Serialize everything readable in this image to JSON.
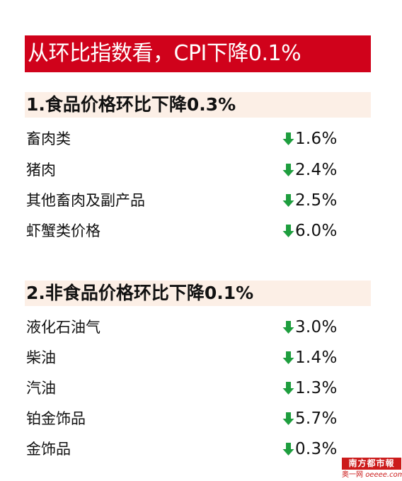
{
  "title": "从环比指数看，CPI下降0.1%",
  "colors": {
    "banner": "#d0021b",
    "section_bg": "#fcefe6",
    "arrow": "#1e9e3e"
  },
  "sections": [
    {
      "heading": "1.食品价格环比下降0.3%",
      "items": [
        {
          "name": "畜肉类",
          "value": "1.6%"
        },
        {
          "name": "猪肉",
          "value": "2.4%"
        },
        {
          "name": "其他畜肉及副产品",
          "value": "2.5%"
        },
        {
          "name": "虾蟹类价格",
          "value": "6.0%"
        }
      ]
    },
    {
      "heading": "2.非食品价格环比下降0.1%",
      "items": [
        {
          "name": "液化石油气",
          "value": "3.0%"
        },
        {
          "name": "柴油",
          "value": "1.4%"
        },
        {
          "name": "汽油",
          "value": "1.3%"
        },
        {
          "name": "铂金饰品",
          "value": "5.7%"
        },
        {
          "name": "金饰品",
          "value": "0.3%"
        }
      ]
    }
  ],
  "watermark": {
    "logo_text": "南方都市報",
    "prefix": "奥一网",
    "url": "oeeee.com"
  }
}
